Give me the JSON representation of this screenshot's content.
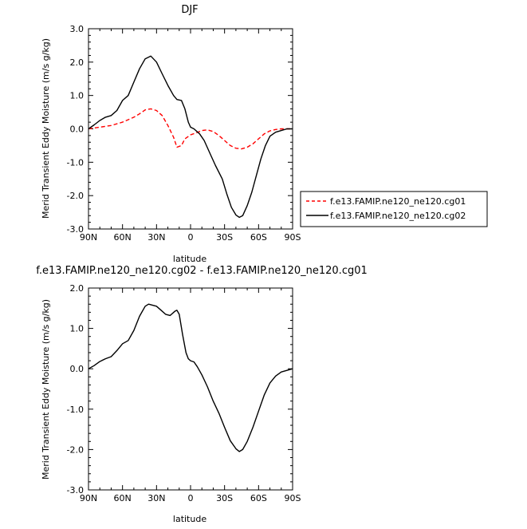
{
  "chart_data": [
    {
      "type": "line",
      "title": "DJF",
      "xlabel": "latitude",
      "ylabel": "Merid Transient Eddy Moisture (m/s g/kg)",
      "x_ticks": [
        "90N",
        "60N",
        "30N",
        "0",
        "30S",
        "60S",
        "90S"
      ],
      "y_ticks": [
        "3.0",
        "2.0",
        "1.0",
        "0.0",
        "-1.0",
        "-2.0",
        "-3.0"
      ],
      "xlim": [
        90,
        -90
      ],
      "ylim": [
        -3,
        3
      ],
      "legend": {
        "placement": "right"
      },
      "series": [
        {
          "name": "f.e13.FAMIP.ne120_ne120.cg01",
          "color": "#ff0000",
          "dash": "dashed",
          "x": [
            90,
            80,
            70,
            60,
            50,
            45,
            40,
            35,
            30,
            25,
            20,
            15,
            12,
            8,
            5,
            0,
            -5,
            -10,
            -15,
            -20,
            -25,
            -30,
            -35,
            -40,
            -45,
            -50,
            -55,
            -60,
            -65,
            -70,
            -75,
            -80,
            -90
          ],
          "y": [
            0.0,
            0.05,
            0.1,
            0.2,
            0.35,
            0.45,
            0.57,
            0.6,
            0.55,
            0.4,
            0.1,
            -0.25,
            -0.55,
            -0.5,
            -0.3,
            -0.18,
            -0.12,
            -0.05,
            -0.03,
            -0.08,
            -0.2,
            -0.35,
            -0.5,
            -0.58,
            -0.6,
            -0.55,
            -0.45,
            -0.3,
            -0.15,
            -0.06,
            -0.02,
            0.0,
            0.0
          ]
        },
        {
          "name": "f.e13.FAMIP.ne120_ne120.cg02",
          "color": "#000000",
          "dash": "solid",
          "x": [
            90,
            85,
            80,
            75,
            70,
            65,
            60,
            55,
            50,
            45,
            40,
            35,
            30,
            25,
            20,
            15,
            12,
            8,
            5,
            2,
            0,
            -3,
            -8,
            -12,
            -18,
            -22,
            -28,
            -32,
            -36,
            -40,
            -43,
            -46,
            -50,
            -54,
            -58,
            -62,
            -66,
            -70,
            -75,
            -80,
            -85,
            -90
          ],
          "y": [
            0.0,
            0.12,
            0.25,
            0.35,
            0.4,
            0.55,
            0.85,
            1.0,
            1.4,
            1.8,
            2.1,
            2.18,
            2.0,
            1.65,
            1.3,
            1.0,
            0.88,
            0.85,
            0.6,
            0.2,
            0.05,
            0.0,
            -0.15,
            -0.35,
            -0.8,
            -1.1,
            -1.5,
            -1.95,
            -2.35,
            -2.58,
            -2.65,
            -2.6,
            -2.3,
            -1.9,
            -1.4,
            -0.9,
            -0.5,
            -0.22,
            -0.1,
            -0.05,
            0.0,
            0.0
          ]
        }
      ]
    },
    {
      "type": "line",
      "title": "f.e13.FAMIP.ne120_ne120.cg02 - f.e13.FAMIP.ne120_ne120.cg01",
      "xlabel": "latitude",
      "ylabel": "Merid Transient Eddy Moisture (m/s g/kg)",
      "x_ticks": [
        "90N",
        "60N",
        "30N",
        "0",
        "30S",
        "60S",
        "90S"
      ],
      "y_ticks": [
        "2.0",
        "1.0",
        "0.0",
        "-1.0",
        "-2.0",
        "-3.0"
      ],
      "xlim": [
        90,
        -90
      ],
      "ylim": [
        -3,
        2
      ],
      "series": [
        {
          "color": "#000000",
          "dash": "solid",
          "x": [
            90,
            85,
            80,
            75,
            70,
            65,
            60,
            55,
            50,
            45,
            40,
            37,
            34,
            30,
            26,
            22,
            18,
            14,
            12,
            10,
            7,
            4,
            2,
            0,
            -3,
            -6,
            -10,
            -15,
            -20,
            -25,
            -30,
            -35,
            -40,
            -43,
            -46,
            -50,
            -55,
            -60,
            -65,
            -70,
            -75,
            -80,
            -85,
            -90
          ],
          "y": [
            0.0,
            0.08,
            0.18,
            0.25,
            0.3,
            0.45,
            0.62,
            0.7,
            0.95,
            1.3,
            1.55,
            1.6,
            1.58,
            1.55,
            1.45,
            1.35,
            1.32,
            1.42,
            1.45,
            1.35,
            0.85,
            0.4,
            0.25,
            0.2,
            0.17,
            0.05,
            -0.15,
            -0.45,
            -0.8,
            -1.1,
            -1.45,
            -1.78,
            -1.98,
            -2.05,
            -2.0,
            -1.8,
            -1.45,
            -1.05,
            -0.65,
            -0.35,
            -0.18,
            -0.08,
            -0.04,
            0.0
          ]
        }
      ]
    }
  ]
}
